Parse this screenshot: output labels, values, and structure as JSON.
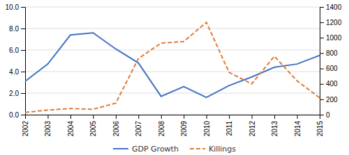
{
  "chart_data": {
    "type": "line",
    "x": [
      2002,
      2003,
      2004,
      2005,
      2006,
      2007,
      2008,
      2009,
      2010,
      2011,
      2012,
      2013,
      2014,
      2015
    ],
    "xlim": [
      2002,
      2015
    ],
    "xticks": [
      2002,
      2003,
      2004,
      2005,
      2006,
      2007,
      2008,
      2009,
      2010,
      2011,
      2012,
      2013,
      2014,
      2015
    ],
    "series": [
      {
        "name": "GDP Growth",
        "color": "#4472C4",
        "line_style": "solid",
        "values": [
          3.1,
          4.7,
          7.4,
          7.6,
          6.1,
          4.8,
          1.7,
          2.6,
          1.6,
          2.7,
          3.5,
          4.4,
          4.7,
          5.5
        ]
      },
      {
        "name": "Killings",
        "color": "#E07B39",
        "line_style": "dashed",
        "axis": "y2",
        "values": [
          30,
          60,
          80,
          70,
          150,
          730,
          930,
          950,
          1200,
          550,
          400,
          760,
          440,
          220
        ]
      }
    ],
    "ylim": [
      0.0,
      10.0
    ],
    "yticks": [
      {
        "value": 0,
        "label": "0.0"
      },
      {
        "value": 2,
        "label": "2.0"
      },
      {
        "value": 4,
        "label": "4.0"
      },
      {
        "value": 6,
        "label": "6.0"
      },
      {
        "value": 8,
        "label": "8.0"
      },
      {
        "value": 10,
        "label": "10.0"
      }
    ],
    "y2lim": [
      0,
      1400
    ],
    "y2ticks": [
      0,
      200,
      400,
      600,
      800,
      1000,
      1200,
      1400
    ],
    "grid": true,
    "legend": "bottom"
  }
}
